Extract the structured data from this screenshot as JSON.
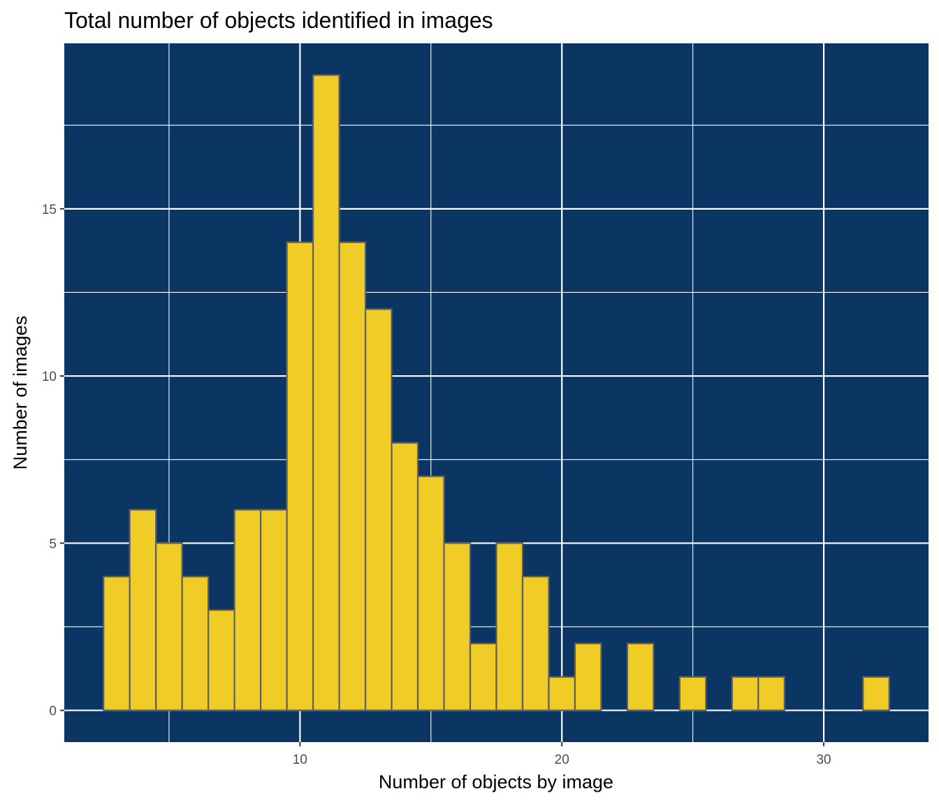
{
  "chart_data": {
    "type": "bar",
    "title": "Total number of objects identified in images",
    "xlabel": "Number of objects by image",
    "ylabel": "Number of images",
    "xlim": [
      1,
      34
    ],
    "ylim": [
      -0.95,
      19.95
    ],
    "x_ticks": [
      10,
      20,
      30
    ],
    "y_ticks": [
      0,
      5,
      10,
      15
    ],
    "x_minor_gridlines": [
      5,
      15,
      25
    ],
    "y_minor_gridlines": [
      2.5,
      7.5,
      12.5,
      17.5
    ],
    "grid": true,
    "bin_width": 1,
    "bins": [
      {
        "x": 3,
        "count": 4
      },
      {
        "x": 4,
        "count": 6
      },
      {
        "x": 5,
        "count": 5
      },
      {
        "x": 6,
        "count": 4
      },
      {
        "x": 7,
        "count": 3
      },
      {
        "x": 8,
        "count": 6
      },
      {
        "x": 9,
        "count": 6
      },
      {
        "x": 10,
        "count": 14
      },
      {
        "x": 11,
        "count": 19
      },
      {
        "x": 12,
        "count": 14
      },
      {
        "x": 13,
        "count": 12
      },
      {
        "x": 14,
        "count": 8
      },
      {
        "x": 15,
        "count": 7
      },
      {
        "x": 16,
        "count": 5
      },
      {
        "x": 17,
        "count": 2
      },
      {
        "x": 18,
        "count": 5
      },
      {
        "x": 19,
        "count": 4
      },
      {
        "x": 20,
        "count": 1
      },
      {
        "x": 21,
        "count": 2
      },
      {
        "x": 22,
        "count": 0
      },
      {
        "x": 23,
        "count": 2
      },
      {
        "x": 24,
        "count": 0
      },
      {
        "x": 25,
        "count": 1
      },
      {
        "x": 26,
        "count": 0
      },
      {
        "x": 27,
        "count": 1
      },
      {
        "x": 28,
        "count": 1
      },
      {
        "x": 29,
        "count": 0
      },
      {
        "x": 30,
        "count": 0
      },
      {
        "x": 31,
        "count": 0
      },
      {
        "x": 32,
        "count": 1
      }
    ],
    "colors": {
      "panel_background": "#0b3563",
      "bar_fill": "#f0cc26",
      "bar_outline": "#5f5f5f",
      "grid": "#ffffff"
    }
  }
}
